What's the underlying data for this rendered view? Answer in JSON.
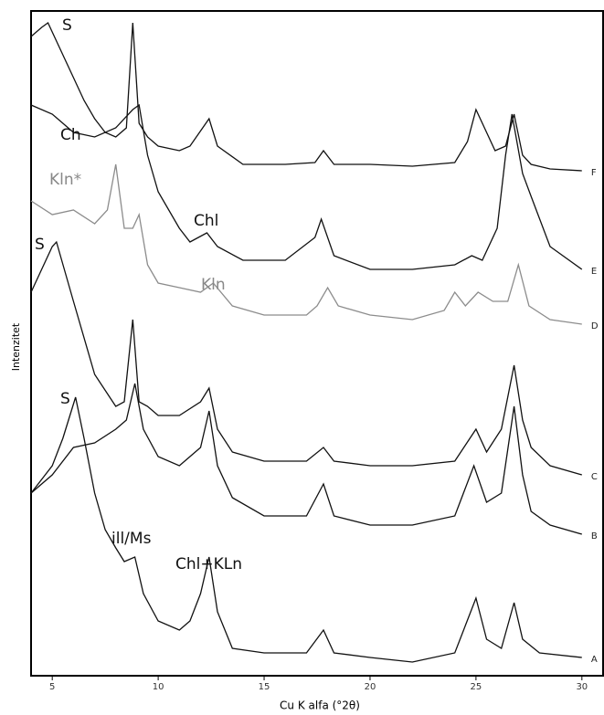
{
  "chart_data": {
    "type": "line",
    "x_label": "Cu K alfa (°2θ)",
    "y_label": "Intenzitet",
    "xlim": [
      4,
      31
    ],
    "ylim": [
      0,
      728
    ],
    "xticks": [
      5,
      10,
      15,
      20,
      25,
      30
    ],
    "annotations": [
      "S",
      "Ch",
      "Kln*",
      "Chl",
      "S",
      "Kln",
      "S",
      "ill/Ms",
      "Chl+KLn"
    ],
    "series": [
      {
        "name": "F",
        "color": "#111111",
        "x": [
          4,
          4.5,
          4.8,
          5.2,
          6,
          6.5,
          7,
          7.5,
          8,
          8.5,
          8.8,
          9.1,
          9.5,
          10,
          11,
          11.5,
          12.4,
          12.8,
          14,
          16,
          17.4,
          17.8,
          18.3,
          20,
          22,
          24,
          24.6,
          25,
          25.4,
          25.9,
          26.4,
          26.8,
          27.2,
          27.6,
          28.5,
          30
        ],
        "values": [
          700,
          710,
          715,
          695,
          655,
          630,
          610,
          595,
          590,
          600,
          715,
          605,
          590,
          580,
          575,
          580,
          610,
          580,
          560,
          560,
          562,
          575,
          560,
          560,
          558,
          562,
          585,
          620,
          600,
          575,
          580,
          615,
          570,
          560,
          555,
          553
        ]
      },
      {
        "name": "E",
        "color": "#111111",
        "x": [
          4,
          5,
          6,
          7,
          8,
          8.8,
          9.1,
          9.5,
          10,
          11,
          11.5,
          12.3,
          12.8,
          14,
          16,
          17.4,
          17.7,
          18.3,
          20,
          22,
          24,
          24.8,
          25.3,
          26,
          26.4,
          26.7,
          27.2,
          27.6,
          28.5,
          30
        ],
        "values": [
          625,
          615,
          595,
          590,
          600,
          620,
          625,
          570,
          530,
          490,
          475,
          485,
          470,
          455,
          455,
          480,
          500,
          460,
          445,
          445,
          450,
          460,
          455,
          490,
          570,
          615,
          550,
          525,
          470,
          445
        ]
      },
      {
        "name": "D",
        "color": "#8c8c8c",
        "x": [
          4,
          5,
          6,
          7,
          7.6,
          8,
          8.4,
          8.8,
          9.1,
          9.5,
          10,
          11,
          12,
          12.6,
          13.5,
          15,
          17,
          17.5,
          18,
          18.5,
          20,
          22,
          23.5,
          24,
          24.5,
          25.1,
          25.8,
          26.5,
          27,
          27.5,
          28.5,
          30
        ],
        "values": [
          520,
          505,
          510,
          495,
          510,
          560,
          490,
          490,
          505,
          450,
          430,
          425,
          420,
          430,
          405,
          395,
          395,
          405,
          425,
          405,
          395,
          390,
          400,
          420,
          405,
          420,
          410,
          410,
          450,
          405,
          390,
          385
        ]
      },
      {
        "name": "C",
        "color": "#111111",
        "x": [
          4,
          5,
          5.2,
          6,
          7,
          8,
          8.4,
          8.8,
          9.1,
          9.5,
          10,
          11,
          12,
          12.4,
          12.8,
          13.5,
          15,
          17,
          17.8,
          18.3,
          20,
          22,
          24,
          25,
          25.5,
          26.2,
          26.8,
          27.2,
          27.6,
          28.5,
          30
        ],
        "values": [
          420,
          470,
          475,
          410,
          330,
          295,
          300,
          390,
          300,
          295,
          285,
          285,
          300,
          315,
          270,
          245,
          235,
          235,
          250,
          235,
          230,
          230,
          235,
          270,
          245,
          270,
          340,
          280,
          250,
          230,
          220
        ]
      },
      {
        "name": "B",
        "color": "#111111",
        "x": [
          4,
          5,
          6,
          7,
          8,
          8.5,
          8.9,
          9.3,
          10,
          11,
          12,
          12.4,
          12.8,
          13.5,
          15,
          17,
          17.8,
          18.3,
          20,
          22,
          24,
          24.9,
          25.5,
          26.2,
          26.8,
          27.2,
          27.6,
          28.5,
          30
        ],
        "values": [
          200,
          220,
          250,
          255,
          270,
          280,
          320,
          270,
          240,
          230,
          250,
          290,
          230,
          195,
          175,
          175,
          210,
          175,
          165,
          165,
          175,
          230,
          190,
          200,
          295,
          220,
          180,
          165,
          155
        ]
      },
      {
        "name": "A",
        "color": "#111111",
        "x": [
          4,
          5,
          5.5,
          6.1,
          6.5,
          7,
          7.5,
          8,
          8.4,
          8.9,
          9.3,
          10,
          11,
          11.5,
          12,
          12.4,
          12.8,
          13.5,
          15,
          17,
          17.8,
          18.3,
          20,
          22,
          24,
          25,
          25.5,
          26.2,
          26.8,
          27.2,
          28,
          30
        ],
        "values": [
          200,
          230,
          260,
          305,
          260,
          200,
          160,
          140,
          125,
          130,
          90,
          60,
          50,
          60,
          90,
          130,
          70,
          30,
          25,
          25,
          50,
          25,
          20,
          15,
          25,
          85,
          40,
          30,
          80,
          40,
          25,
          20
        ]
      }
    ]
  }
}
